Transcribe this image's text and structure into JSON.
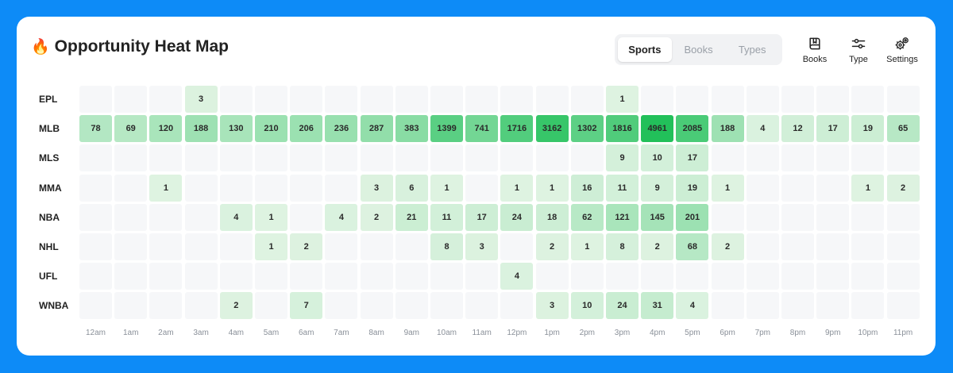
{
  "header": {
    "title_icon": "fire-icon",
    "title": "Opportunity Heat Map"
  },
  "segmented": {
    "tabs": [
      "Sports",
      "Books",
      "Types"
    ],
    "active": "Sports"
  },
  "toolbar": {
    "books_label": "Books",
    "type_label": "Type",
    "settings_label": "Settings",
    "books_icon": "book-icon",
    "type_icon": "sliders-icon",
    "settings_icon": "gears-icon"
  },
  "colors": {
    "background": "#0d8bf7",
    "empty_cell": "#f6f7f9",
    "low": "#dff3e2",
    "high": "#22c05a"
  },
  "chart_data": {
    "type": "heatmap",
    "x": [
      "12am",
      "1am",
      "2am",
      "3am",
      "4am",
      "5am",
      "6am",
      "7am",
      "8am",
      "9am",
      "10am",
      "11am",
      "12pm",
      "1pm",
      "2pm",
      "3pm",
      "4pm",
      "5pm",
      "6pm",
      "7pm",
      "8pm",
      "9pm",
      "10pm",
      "11pm"
    ],
    "y": [
      "EPL",
      "MLB",
      "MLS",
      "MMA",
      "NBA",
      "NHL",
      "UFL",
      "WNBA"
    ],
    "values": [
      [
        null,
        null,
        null,
        3,
        null,
        null,
        null,
        null,
        null,
        null,
        null,
        null,
        null,
        null,
        null,
        1,
        null,
        null,
        null,
        null,
        null,
        null,
        null,
        null
      ],
      [
        78,
        69,
        120,
        188,
        130,
        210,
        206,
        236,
        287,
        383,
        1399,
        741,
        1716,
        3162,
        1302,
        1816,
        4961,
        2085,
        188,
        4,
        12,
        17,
        19,
        65
      ],
      [
        null,
        null,
        null,
        null,
        null,
        null,
        null,
        null,
        null,
        null,
        null,
        null,
        null,
        null,
        null,
        9,
        10,
        17,
        null,
        null,
        null,
        null,
        null,
        null
      ],
      [
        null,
        null,
        1,
        null,
        null,
        null,
        null,
        null,
        3,
        6,
        1,
        null,
        1,
        1,
        16,
        11,
        9,
        19,
        1,
        null,
        null,
        null,
        1,
        2
      ],
      [
        null,
        null,
        null,
        null,
        4,
        1,
        null,
        4,
        2,
        21,
        11,
        17,
        24,
        18,
        62,
        121,
        145,
        201,
        null,
        null,
        null,
        null,
        null,
        null
      ],
      [
        null,
        null,
        null,
        null,
        null,
        1,
        2,
        null,
        null,
        null,
        8,
        3,
        null,
        2,
        1,
        8,
        2,
        68,
        2,
        null,
        null,
        null,
        null,
        null
      ],
      [
        null,
        null,
        null,
        null,
        null,
        null,
        null,
        null,
        null,
        null,
        null,
        null,
        4,
        null,
        null,
        null,
        null,
        null,
        null,
        null,
        null,
        null,
        null,
        null
      ],
      [
        null,
        null,
        null,
        null,
        2,
        null,
        7,
        null,
        null,
        null,
        null,
        null,
        null,
        3,
        10,
        24,
        31,
        4,
        null,
        null,
        null,
        null,
        null,
        null
      ]
    ]
  }
}
